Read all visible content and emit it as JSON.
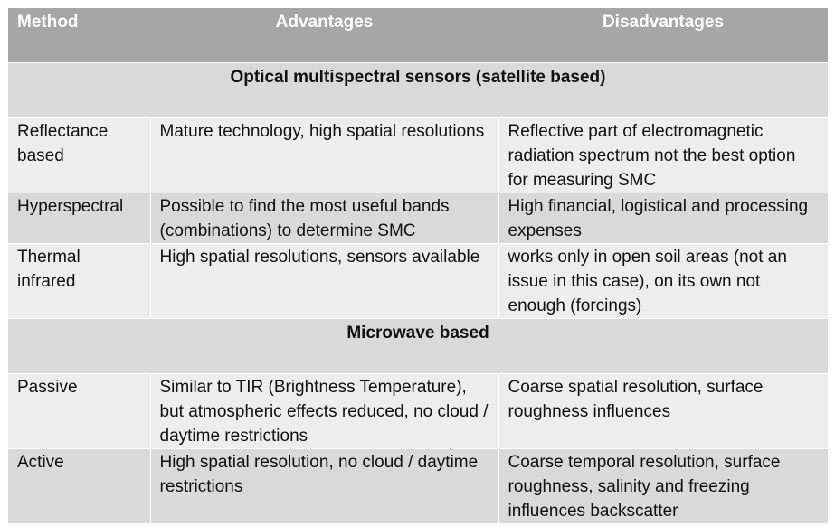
{
  "header": {
    "method": "Method",
    "advantages": "Advantages",
    "disadvantages": "Disadvantages"
  },
  "sections": [
    {
      "title": "Optical multispectral sensors (satellite based)",
      "rows": [
        {
          "method": "Reflectance based",
          "advantages": "Mature technology, high spatial resolutions",
          "disadvantages": "Reflective part of electromagnetic radiation spectrum not the best option for measuring SMC"
        },
        {
          "method": "Hyperspectral",
          "advantages": "Possible to find the most useful bands (combinations) to determine SMC",
          "disadvantages": "High financial, logistical and processing expenses"
        },
        {
          "method": "Thermal infrared",
          "advantages": "High spatial resolutions, sensors available",
          "disadvantages": "works only in open soil areas (not an issue in this case), on its own not enough (forcings)"
        }
      ]
    },
    {
      "title": "Microwave based",
      "rows": [
        {
          "method": "Passive",
          "advantages": "Similar to TIR (Brightness Temperature), but atmospheric effects reduced, no cloud / daytime restrictions",
          "disadvantages": "Coarse spatial resolution, surface roughness influences"
        },
        {
          "method": "Active",
          "advantages": "High spatial resolution, no cloud / daytime restrictions",
          "disadvantages": "Coarse temporal resolution, surface roughness, salinity and freezing influences backscatter"
        }
      ]
    }
  ]
}
